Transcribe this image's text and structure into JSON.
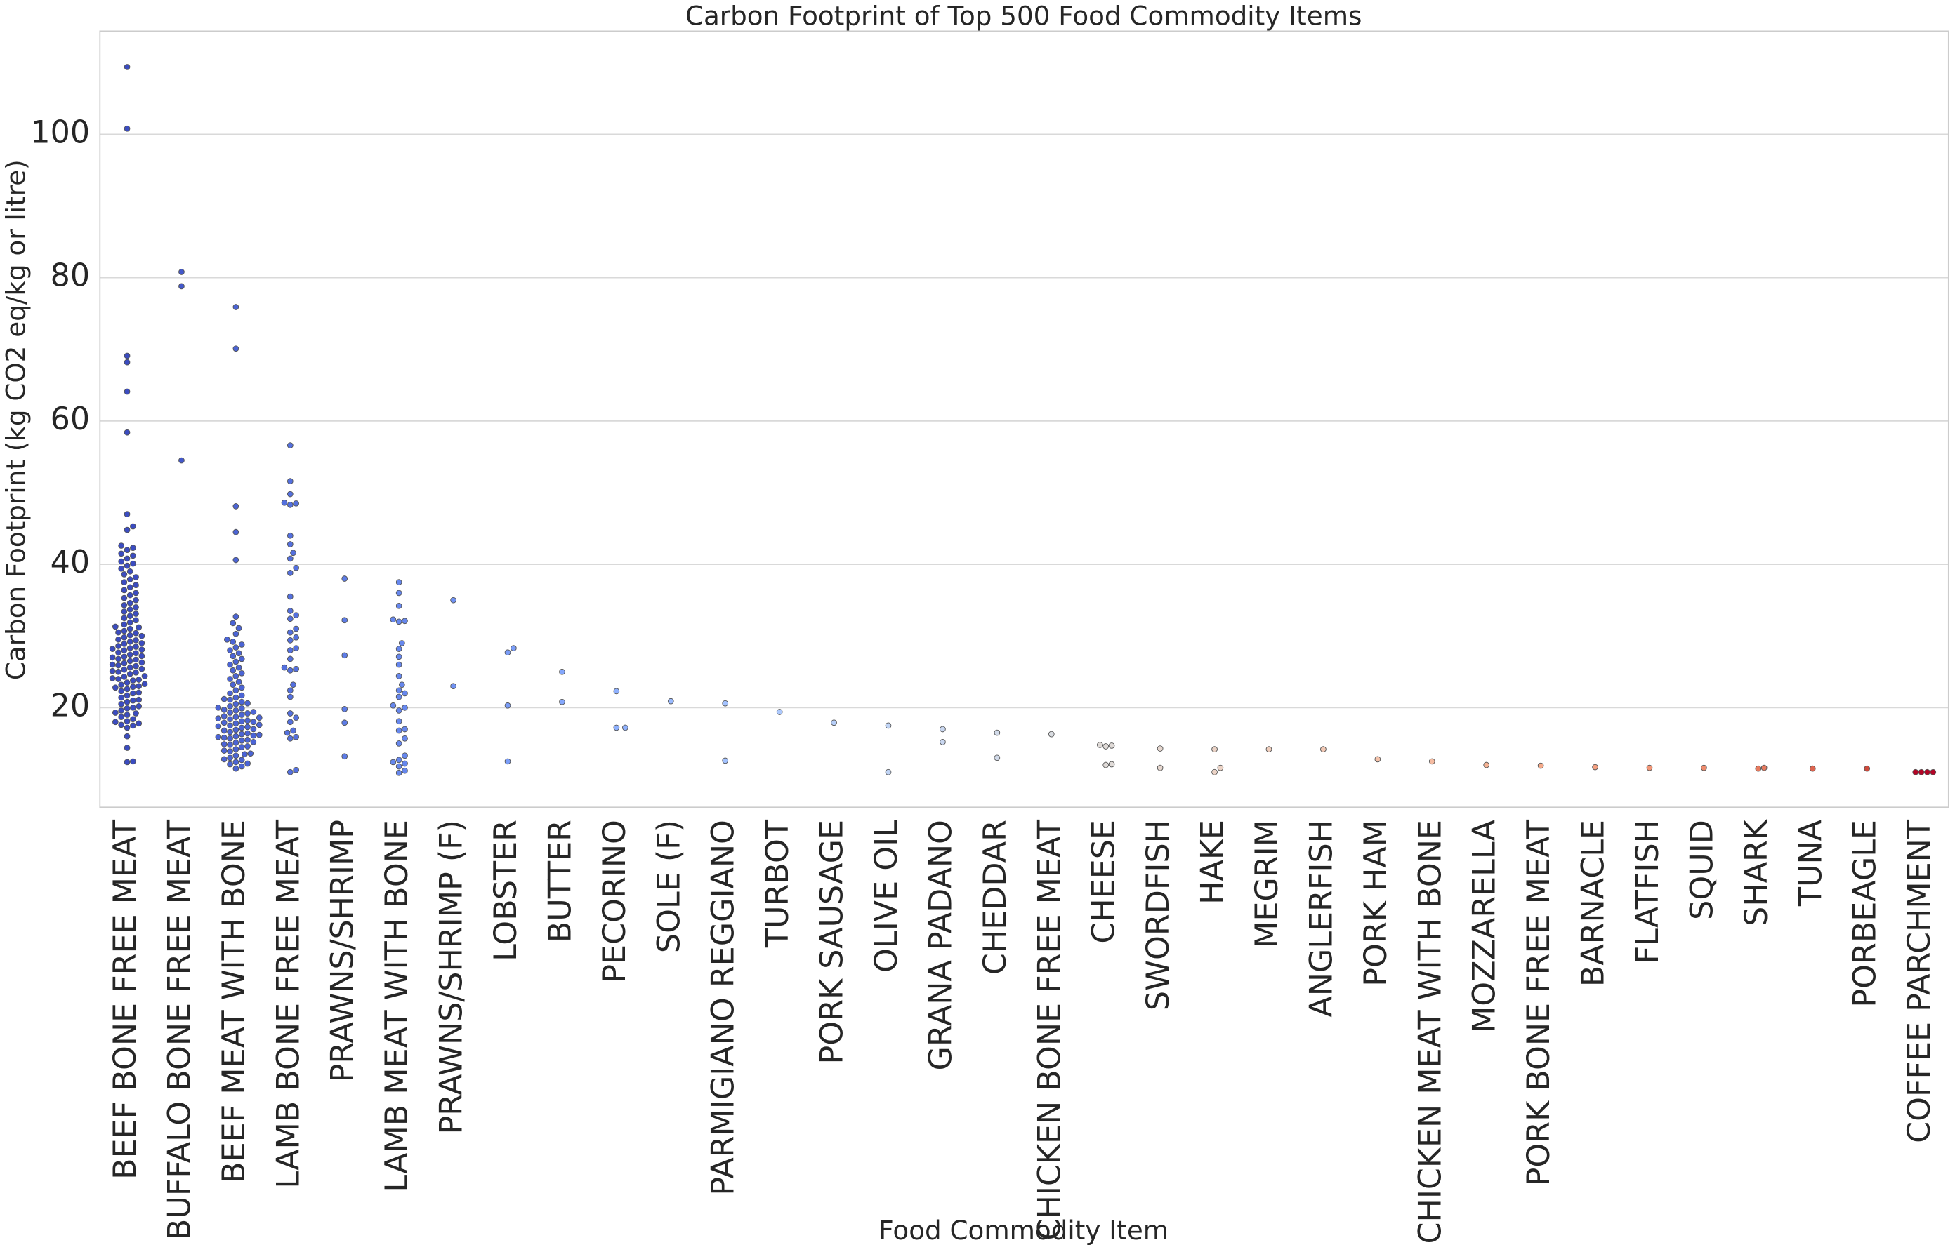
{
  "chart_data": {
    "type": "swarm",
    "title": "Carbon Footprint of Top 500 Food Commodity Items",
    "xlabel": "Food Commodity Item",
    "ylabel": "Carbon Footprint (kg CO2 eq/kg or litre)",
    "categories": [
      "BEEF BONE FREE MEAT",
      "BUFFALO BONE FREE MEAT",
      "BEEF MEAT WITH BONE",
      "LAMB BONE FREE MEAT",
      "PRAWNS/SHRIMP",
      "LAMB MEAT WITH BONE",
      "PRAWNS/SHRIMP (F)",
      "LOBSTER",
      "BUTTER",
      "PECORINO",
      "SOLE (F)",
      "PARMIGIANO REGGIANO",
      "TURBOT",
      "PORK SAUSAGE",
      "OLIVE OIL",
      "GRANA PADANO",
      "CHEDDAR",
      "CHICKEN BONE FREE MEAT",
      "CHEESE",
      "SWORDFISH",
      "HAKE",
      "MEGRIM",
      "ANGLERFISH",
      "PORK HAM",
      "CHICKEN MEAT WITH BONE",
      "MOZZARELLA",
      "PORK BONE FREE MEAT",
      "BARNACLE",
      "FLATFISH",
      "SQUID",
      "SHARK",
      "TUNA",
      "PORBEAGLE",
      "COFFEE PARCHMENT"
    ],
    "colors": [
      "#3b4cc0",
      "#4358cb",
      "#4b64d5",
      "#5470de",
      "#5d7ce6",
      "#6687ed",
      "#7092f3",
      "#7a9df8",
      "#84a7fc",
      "#8fb1fe",
      "#99baff",
      "#a3c2fe",
      "#adc9fd",
      "#b7cff9",
      "#c0d4f5",
      "#c9d7f0",
      "#d1dae9",
      "#d9dce1",
      "#e0dbd8",
      "#e6d7cf",
      "#ebd3c6",
      "#efcebd",
      "#f2c8b4",
      "#f4c2aa",
      "#f5bba1",
      "#f6b394",
      "#f5aa8a",
      "#f4a081",
      "#f29677",
      "#ee8b6d",
      "#e67a5f",
      "#dc6550",
      "#cc4a3c",
      "#b40426"
    ],
    "values": [
      [
        109.4,
        100.8,
        69.1,
        68.2,
        64.1,
        58.4,
        47.0,
        45.3,
        44.8,
        42.6,
        42.3,
        42.0,
        41.5,
        41.2,
        40.8,
        40.4,
        40.1,
        39.8,
        39.4,
        39.0,
        38.6,
        38.2,
        37.9,
        37.5,
        37.1,
        36.8,
        36.4,
        36.0,
        35.7,
        35.3,
        35.0,
        34.6,
        34.3,
        34.0,
        33.7,
        33.4,
        33.1,
        32.8,
        32.5,
        32.2,
        31.9,
        31.6,
        31.3,
        31.0,
        30.7,
        30.4,
        30.1,
        29.8,
        29.5,
        29.2,
        28.9,
        28.6,
        28.3,
        28.0,
        27.7,
        27.4,
        27.1,
        26.8,
        26.5,
        26.2,
        25.9,
        25.6,
        25.3,
        25.0,
        24.7,
        24.4,
        24.1,
        23.8,
        23.5,
        23.2,
        22.9,
        22.6,
        22.3,
        22.0,
        21.7,
        21.4,
        21.1,
        20.8,
        20.5,
        20.2,
        19.9,
        19.6,
        19.3,
        19.0,
        18.7,
        18.4,
        18.1,
        17.8,
        17.5,
        17.2,
        16.0,
        14.4,
        12.5,
        12.4,
        22.1,
        22.8,
        23.3,
        23.9,
        24.3,
        24.9,
        25.4,
        25.8,
        26.3,
        26.7,
        27.2,
        27.6,
        28.1,
        28.5,
        29.0,
        29.4,
        30.0,
        30.5,
        31.2,
        23.0,
        24.0,
        25.1,
        26.0,
        27.0,
        28.2,
        21.0,
        20.0,
        19.2,
        18.0,
        17.6
      ],
      [
        80.8,
        78.8,
        54.5
      ],
      [
        75.9,
        70.1,
        48.1,
        44.5,
        40.6,
        32.7,
        31.8,
        31.1,
        30.3,
        29.5,
        29.2,
        28.8,
        28.4,
        28.0,
        27.6,
        27.2,
        26.8,
        26.4,
        26.0,
        25.6,
        25.2,
        24.8,
        24.4,
        24.0,
        23.6,
        23.2,
        22.8,
        22.4,
        22.0,
        21.7,
        21.4,
        21.1,
        20.8,
        20.5,
        20.2,
        19.9,
        19.6,
        19.3,
        19.0,
        18.7,
        18.4,
        18.1,
        17.8,
        17.5,
        17.2,
        16.9,
        16.6,
        16.3,
        16.0,
        15.7,
        15.4,
        15.1,
        14.8,
        14.5,
        14.2,
        13.9,
        13.6,
        13.3,
        13.0,
        12.7,
        12.4,
        12.1,
        11.8,
        11.5,
        14.0,
        14.6,
        15.2,
        15.8,
        16.4,
        17.0,
        17.6,
        18.2,
        18.8,
        19.4,
        20.0,
        20.6,
        21.2,
        15.5,
        16.2,
        16.8,
        17.4,
        18.0,
        18.6,
        19.2,
        13.5,
        12.8,
        12.2,
        16.1,
        17.3,
        18.5,
        19.7,
        14.9,
        15.9,
        17.9
      ],
      [
        56.6,
        51.6,
        49.8,
        48.6,
        48.3,
        48.5,
        44.0,
        42.8,
        41.6,
        40.8,
        39.5,
        38.8,
        35.5,
        33.5,
        32.9,
        32.4,
        31.0,
        30.5,
        29.8,
        29.4,
        28.3,
        28.0,
        26.8,
        25.6,
        25.4,
        25.2,
        23.2,
        22.4,
        21.5,
        19.2,
        18.6,
        18.0,
        16.8,
        16.5,
        15.9,
        15.7,
        11.3,
        11.0
      ],
      [
        38.0,
        32.2,
        27.3,
        19.8,
        17.9,
        13.2
      ],
      [
        37.5,
        36.0,
        34.2,
        32.3,
        32.1,
        32.0,
        29.0,
        28.2,
        27.1,
        26.0,
        24.4,
        23.2,
        22.4,
        22.0,
        21.5,
        20.3,
        20.0,
        19.6,
        18.1,
        17.0,
        16.8,
        15.7,
        15.0,
        13.3,
        12.7,
        12.4,
        12.2,
        11.8,
        11.2,
        10.9
      ],
      [
        35.0,
        23.0
      ],
      [
        28.3,
        27.7,
        20.3,
        12.5
      ],
      [
        25.0,
        20.8
      ],
      [
        22.3,
        17.2,
        17.2
      ],
      [
        20.9
      ],
      [
        20.6,
        12.6
      ],
      [
        19.4
      ],
      [
        17.9
      ],
      [
        17.5,
        11.0
      ],
      [
        17.0,
        15.2
      ],
      [
        16.5,
        13.0
      ],
      [
        16.3
      ],
      [
        14.8,
        14.7,
        14.6,
        12.1,
        12.0
      ],
      [
        14.3,
        11.6
      ],
      [
        14.2,
        11.6,
        11.0
      ],
      [
        14.2
      ],
      [
        14.2
      ],
      [
        12.8
      ],
      [
        12.5
      ],
      [
        12.0
      ],
      [
        11.9
      ],
      [
        11.7
      ],
      [
        11.6
      ],
      [
        11.6
      ],
      [
        11.6,
        11.5
      ],
      [
        11.5
      ],
      [
        11.5
      ],
      [
        11.0,
        11.0,
        11.0,
        11.0
      ]
    ],
    "ylim": [
      6.1,
      114.4
    ],
    "yticks": [
      20,
      40,
      60,
      80,
      100
    ],
    "grid": true
  }
}
